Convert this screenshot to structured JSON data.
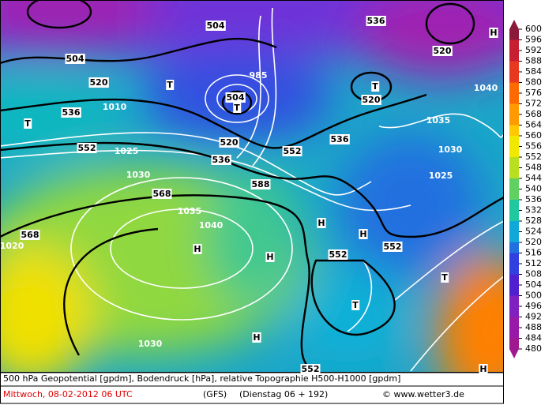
{
  "legend": {
    "levels": [
      "600",
      "596",
      "592",
      "588",
      "584",
      "580",
      "576",
      "572",
      "568",
      "564",
      "560",
      "556",
      "552",
      "548",
      "544",
      "540",
      "536",
      "532",
      "528",
      "524",
      "520",
      "516",
      "512",
      "508",
      "504",
      "500",
      "496",
      "492",
      "488",
      "484",
      "480"
    ]
  },
  "map": {
    "labels": [
      "504",
      "520",
      "536",
      "552",
      "568",
      "568",
      "536",
      "520",
      "504",
      "552",
      "588",
      "536",
      "552",
      "552",
      "552",
      "504",
      "536",
      "520",
      "520",
      "H",
      "H",
      "H",
      "H",
      "H",
      "H",
      "H",
      "T",
      "T",
      "T",
      "T",
      "T",
      "T",
      "1035",
      "1040",
      "1030",
      "1020",
      "1030",
      "1025",
      "1035",
      "1040",
      "985",
      "1010",
      "1025",
      "1030"
    ]
  },
  "footer": {
    "description": "500 hPa Geopotential [gpdm], Bodendruck [hPa], relative Topographie H500-H1000 [gpdm]",
    "date": "Mittwoch, 08-02-2012  06 UTC",
    "model": "(GFS)",
    "run": "(Dienstag 06 + 192)",
    "copyright": "© www.wetter3.de"
  }
}
